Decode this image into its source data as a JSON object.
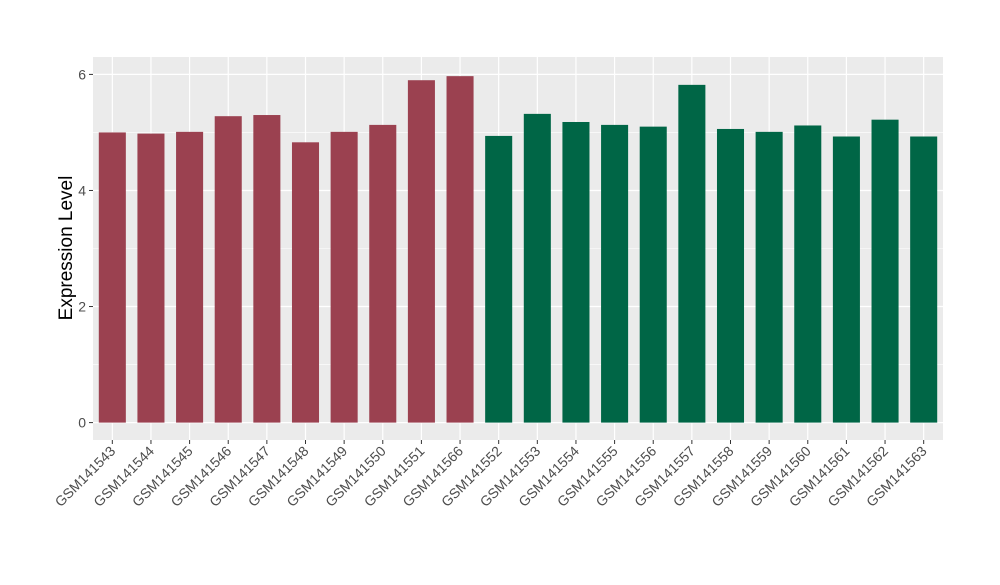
{
  "chart_data": {
    "type": "bar",
    "title": "",
    "xlabel": "",
    "ylabel": "Expression Level",
    "ylim": [
      -0.3,
      6.3
    ],
    "yticks": [
      0,
      2,
      4,
      6
    ],
    "grid": true,
    "legend": "none",
    "colors": {
      "panel_bg": "#ebebeb",
      "grid": "#ffffff",
      "axis_text": "#4d4d4d",
      "group_a": "#9b4150",
      "group_b": "#006646"
    },
    "categories": [
      "GSM141543",
      "GSM141544",
      "GSM141545",
      "GSM141546",
      "GSM141547",
      "GSM141548",
      "GSM141549",
      "GSM141550",
      "GSM141551",
      "GSM141566",
      "GSM141552",
      "GSM141553",
      "GSM141554",
      "GSM141555",
      "GSM141556",
      "GSM141557",
      "GSM141558",
      "GSM141559",
      "GSM141560",
      "GSM141561",
      "GSM141562",
      "GSM141563"
    ],
    "values": [
      5.0,
      4.98,
      5.01,
      5.28,
      5.3,
      4.83,
      5.01,
      5.13,
      5.9,
      5.97,
      4.94,
      5.32,
      5.18,
      5.13,
      5.1,
      5.82,
      5.06,
      5.01,
      5.12,
      4.93,
      5.22,
      4.93
    ],
    "groups": [
      "a",
      "a",
      "a",
      "a",
      "a",
      "a",
      "a",
      "a",
      "a",
      "a",
      "b",
      "b",
      "b",
      "b",
      "b",
      "b",
      "b",
      "b",
      "b",
      "b",
      "b",
      "b"
    ]
  }
}
